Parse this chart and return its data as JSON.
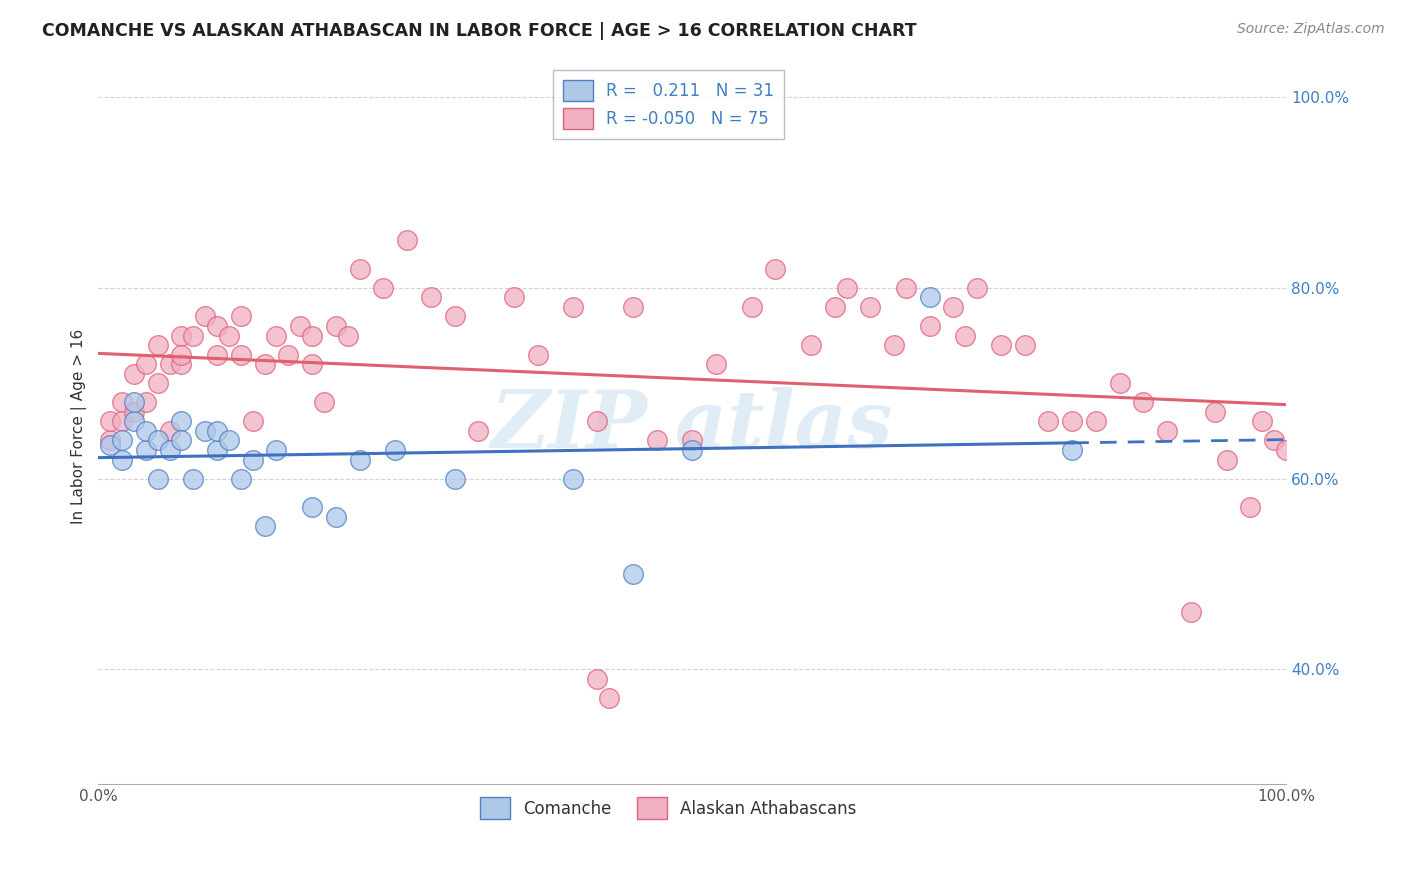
{
  "title": "COMANCHE VS ALASKAN ATHABASCAN IN LABOR FORCE | AGE > 16 CORRELATION CHART",
  "source": "Source: ZipAtlas.com",
  "ylabel": "In Labor Force | Age > 16",
  "r_comanche": 0.211,
  "n_comanche": 31,
  "r_athabascan": -0.05,
  "n_athabascan": 75,
  "comanche_color": "#aec8ea",
  "athabascan_color": "#f0b0c0",
  "comanche_edge_color": "#5080c0",
  "athabascan_edge_color": "#e06080",
  "comanche_line_color": "#4070c0",
  "athabascan_line_color": "#e06070",
  "right_axis_color": "#4080c0",
  "watermark_color": "#c8dff0",
  "grid_color": "#c8c8d0",
  "xlim": [
    0.0,
    1.0
  ],
  "ylim": [
    0.28,
    1.03
  ],
  "x_ticks": [
    0.0,
    1.0
  ],
  "y_ticks": [
    0.4,
    0.6,
    0.8,
    1.0
  ],
  "comanche_x": [
    0.01,
    0.02,
    0.02,
    0.03,
    0.03,
    0.04,
    0.04,
    0.05,
    0.05,
    0.06,
    0.07,
    0.07,
    0.08,
    0.09,
    0.1,
    0.1,
    0.11,
    0.12,
    0.13,
    0.14,
    0.15,
    0.18,
    0.2,
    0.22,
    0.25,
    0.3,
    0.4,
    0.45,
    0.5,
    0.7,
    0.82
  ],
  "comanche_y": [
    0.635,
    0.64,
    0.62,
    0.66,
    0.68,
    0.63,
    0.65,
    0.6,
    0.64,
    0.63,
    0.66,
    0.64,
    0.6,
    0.65,
    0.63,
    0.65,
    0.64,
    0.6,
    0.62,
    0.55,
    0.63,
    0.57,
    0.56,
    0.62,
    0.63,
    0.6,
    0.6,
    0.5,
    0.63,
    0.79,
    0.63
  ],
  "athabascan_x": [
    0.01,
    0.01,
    0.02,
    0.02,
    0.03,
    0.03,
    0.04,
    0.04,
    0.05,
    0.05,
    0.06,
    0.06,
    0.07,
    0.07,
    0.07,
    0.08,
    0.09,
    0.1,
    0.1,
    0.11,
    0.12,
    0.12,
    0.13,
    0.14,
    0.15,
    0.16,
    0.17,
    0.18,
    0.18,
    0.19,
    0.2,
    0.21,
    0.22,
    0.24,
    0.26,
    0.28,
    0.3,
    0.32,
    0.35,
    0.37,
    0.4,
    0.42,
    0.45,
    0.47,
    0.5,
    0.52,
    0.55,
    0.57,
    0.6,
    0.62,
    0.63,
    0.65,
    0.67,
    0.68,
    0.7,
    0.72,
    0.73,
    0.74,
    0.76,
    0.78,
    0.8,
    0.82,
    0.84,
    0.86,
    0.88,
    0.9,
    0.92,
    0.94,
    0.95,
    0.97,
    0.98,
    0.99,
    1.0,
    0.42,
    0.43
  ],
  "athabascan_y": [
    0.64,
    0.66,
    0.68,
    0.66,
    0.67,
    0.71,
    0.72,
    0.68,
    0.74,
    0.7,
    0.72,
    0.65,
    0.72,
    0.75,
    0.73,
    0.75,
    0.77,
    0.76,
    0.73,
    0.75,
    0.77,
    0.73,
    0.66,
    0.72,
    0.75,
    0.73,
    0.76,
    0.75,
    0.72,
    0.68,
    0.76,
    0.75,
    0.82,
    0.8,
    0.85,
    0.79,
    0.77,
    0.65,
    0.79,
    0.73,
    0.78,
    0.66,
    0.78,
    0.64,
    0.64,
    0.72,
    0.78,
    0.82,
    0.74,
    0.78,
    0.8,
    0.78,
    0.74,
    0.8,
    0.76,
    0.78,
    0.75,
    0.8,
    0.74,
    0.74,
    0.66,
    0.66,
    0.66,
    0.7,
    0.68,
    0.65,
    0.46,
    0.67,
    0.62,
    0.57,
    0.66,
    0.64,
    0.63,
    0.39,
    0.37
  ],
  "background_color": "#ffffff"
}
